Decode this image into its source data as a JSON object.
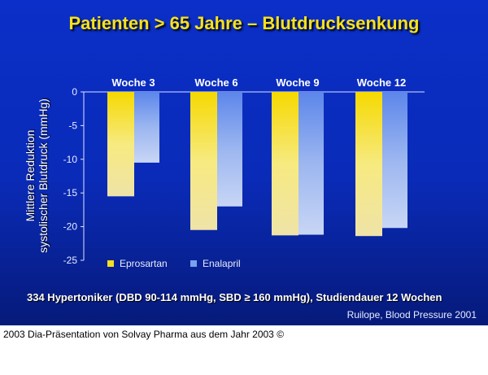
{
  "title": "Patienten > 65 Jahre – Blutdrucksenkung",
  "footnote": "334 Hypertoniker (DBD 90-114 mmHg, SBD ≥ 160 mmHg), Studiendauer 12 Wochen",
  "source": "Ruilope, Blood Pressure 2001",
  "caption": "2003 Dia-Präsentation von Solvay Pharma aus dem Jahr 2003 ©",
  "chart_data": {
    "type": "bar",
    "ylabel_line1": "Mittlere Reduktion",
    "ylabel_line2": "systolischer Blutdruck (mmHg)",
    "categories": [
      "Woche 3",
      "Woche 6",
      "Woche 9",
      "Woche 12"
    ],
    "ylim": [
      -25,
      0
    ],
    "yticks": [
      "0",
      "-5",
      "-10",
      "-15",
      "-20",
      "-25"
    ],
    "legend_position": "bottom-left",
    "series": [
      {
        "name": "Eprosartan",
        "color": "#f5df20",
        "values": [
          -15.5,
          -20.5,
          -21.3,
          -21.4
        ]
      },
      {
        "name": "Enalapril",
        "color": "#7aa0f0",
        "values": [
          -10.5,
          -17,
          -21.2,
          -20.2
        ]
      }
    ]
  }
}
